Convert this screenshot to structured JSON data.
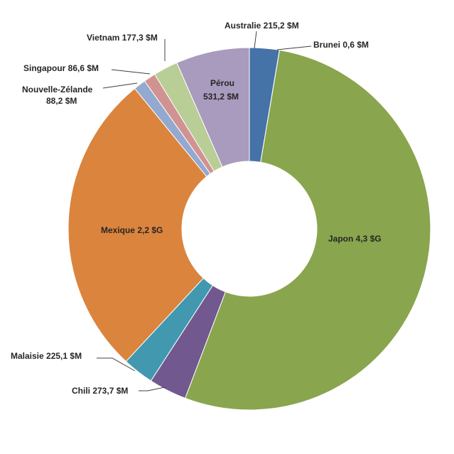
{
  "chart_data": {
    "type": "pie",
    "style": "donut",
    "title": "",
    "legend": "none",
    "slices": [
      {
        "category": "Australie",
        "label": "Australie 215,2 $M",
        "value": 215.2,
        "color": "#4572A7"
      },
      {
        "category": "Brunei",
        "label": "Brunei 0,6 $M",
        "value": 0.6,
        "color": "#AA4643"
      },
      {
        "category": "Japon",
        "label": "Japon 4,3 $G",
        "value": 4300,
        "color": "#89A54E"
      },
      {
        "category": "Chili",
        "label": "Chili 273,7 $M",
        "value": 273.7,
        "color": "#71588F"
      },
      {
        "category": "Malaisie",
        "label": "Malaisie 225,1 $M",
        "value": 225.1,
        "color": "#4198AF"
      },
      {
        "category": "Mexique",
        "label": "Mexique 2,2 $G",
        "value": 2200,
        "color": "#DB843D"
      },
      {
        "category": "Nouvelle-Zélande",
        "label_lines": [
          "Nouvelle-Zélande",
          "88,2 $M"
        ],
        "value": 88.2,
        "color": "#93A9CF"
      },
      {
        "category": "Singapour",
        "label": "Singapour 86,6 $M",
        "value": 86.6,
        "color": "#D19392"
      },
      {
        "category": "Vietnam",
        "label": "Vietnam 177,3 $M",
        "value": 177.3,
        "color": "#B9CD96"
      },
      {
        "category": "Pérou",
        "label_lines": [
          "Pérou",
          "531,2 $M"
        ],
        "value": 531.2,
        "color": "#A99BBD"
      }
    ],
    "value_units": "$M"
  }
}
